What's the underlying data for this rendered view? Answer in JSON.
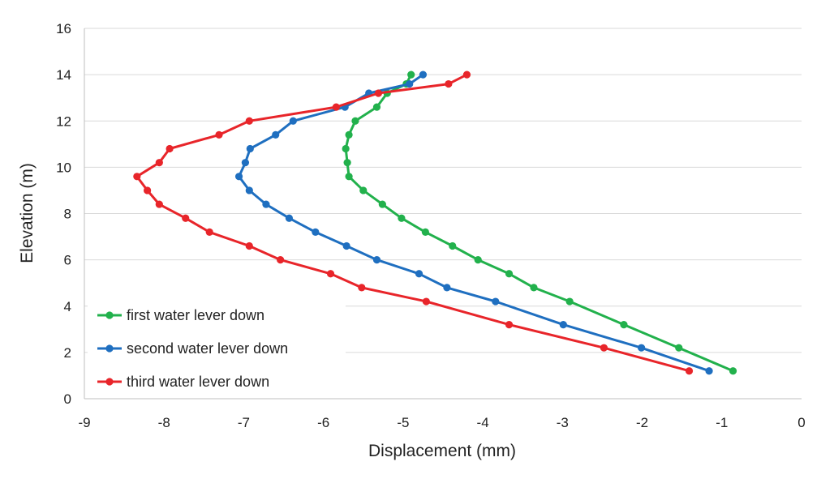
{
  "chart_data": {
    "type": "line",
    "title": "",
    "xlabel": "Displacement (mm)",
    "ylabel": "Elevation (m)",
    "xlim": [
      -9,
      0
    ],
    "ylim": [
      0,
      16
    ],
    "xticks": [
      -9,
      -8,
      -7,
      -6,
      -5,
      -4,
      -3,
      -2,
      -1,
      0
    ],
    "yticks": [
      0,
      2,
      4,
      6,
      8,
      10,
      12,
      14,
      16
    ],
    "xtick_labels": [
      "-9",
      "-8",
      "-7",
      "-6",
      "-5",
      "-4",
      "-3",
      "-2",
      "-1",
      "0"
    ],
    "ytick_labels": [
      "0",
      "2",
      "4",
      "6",
      "8",
      "10",
      "12",
      "14",
      "16"
    ],
    "grid": "horizontal",
    "legend_position": "bottom-left",
    "series": [
      {
        "name": "first water lever down",
        "color": "#22b14c",
        "points": [
          [
            -4.9,
            14.0
          ],
          [
            -4.96,
            13.6
          ],
          [
            -5.2,
            13.2
          ],
          [
            -5.33,
            12.6
          ],
          [
            -5.6,
            12.0
          ],
          [
            -5.68,
            11.4
          ],
          [
            -5.72,
            10.8
          ],
          [
            -5.7,
            10.2
          ],
          [
            -5.68,
            9.6
          ],
          [
            -5.5,
            9.0
          ],
          [
            -5.26,
            8.4
          ],
          [
            -5.02,
            7.8
          ],
          [
            -4.72,
            7.2
          ],
          [
            -4.38,
            6.6
          ],
          [
            -4.06,
            6.0
          ],
          [
            -3.67,
            5.4
          ],
          [
            -3.36,
            4.8
          ],
          [
            -2.91,
            4.2
          ],
          [
            -2.23,
            3.2
          ],
          [
            -1.54,
            2.2
          ],
          [
            -0.86,
            1.2
          ]
        ]
      },
      {
        "name": "second water lever down",
        "color": "#1f6fc0",
        "points": [
          [
            -4.75,
            14.0
          ],
          [
            -4.92,
            13.6
          ],
          [
            -5.43,
            13.2
          ],
          [
            -5.73,
            12.6
          ],
          [
            -6.38,
            12.0
          ],
          [
            -6.6,
            11.4
          ],
          [
            -6.92,
            10.8
          ],
          [
            -6.98,
            10.2
          ],
          [
            -7.06,
            9.6
          ],
          [
            -6.93,
            9.0
          ],
          [
            -6.72,
            8.4
          ],
          [
            -6.43,
            7.8
          ],
          [
            -6.1,
            7.2
          ],
          [
            -5.71,
            6.6
          ],
          [
            -5.33,
            6.0
          ],
          [
            -4.8,
            5.4
          ],
          [
            -4.45,
            4.8
          ],
          [
            -3.84,
            4.2
          ],
          [
            -2.99,
            3.2
          ],
          [
            -2.01,
            2.2
          ],
          [
            -1.16,
            1.2
          ]
        ]
      },
      {
        "name": "third water lever down",
        "color": "#e8252a",
        "points": [
          [
            -4.2,
            14.0
          ],
          [
            -4.43,
            13.6
          ],
          [
            -5.31,
            13.2
          ],
          [
            -5.84,
            12.6
          ],
          [
            -6.93,
            12.0
          ],
          [
            -7.31,
            11.4
          ],
          [
            -7.93,
            10.8
          ],
          [
            -8.06,
            10.2
          ],
          [
            -8.34,
            9.6
          ],
          [
            -8.21,
            9.0
          ],
          [
            -8.06,
            8.4
          ],
          [
            -7.73,
            7.8
          ],
          [
            -7.43,
            7.2
          ],
          [
            -6.93,
            6.6
          ],
          [
            -6.54,
            6.0
          ],
          [
            -5.91,
            5.4
          ],
          [
            -5.52,
            4.8
          ],
          [
            -4.71,
            4.2
          ],
          [
            -3.67,
            3.2
          ],
          [
            -2.48,
            2.2
          ],
          [
            -1.41,
            1.2
          ]
        ]
      }
    ]
  }
}
